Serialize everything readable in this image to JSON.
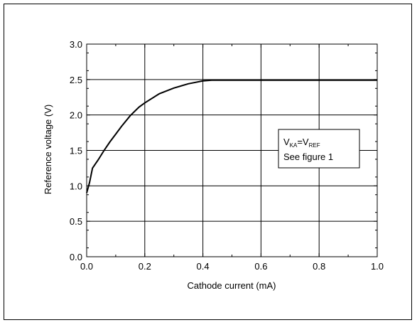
{
  "chart_data": {
    "type": "line",
    "xlabel": "Cathode current (mA)",
    "ylabel": "Reference voltage (V)",
    "xlim": [
      0.0,
      1.0
    ],
    "ylim": [
      0.0,
      3.0
    ],
    "x_ticks": [
      "0.0",
      "0.2",
      "0.4",
      "0.6",
      "0.8",
      "1.0"
    ],
    "y_ticks": [
      "0.0",
      "0.5",
      "1.0",
      "1.5",
      "2.0",
      "2.5",
      "3.0"
    ],
    "grid": true,
    "series": [
      {
        "x": [
          0.0,
          0.01,
          0.02,
          0.04,
          0.06,
          0.08,
          0.1,
          0.12,
          0.15,
          0.18,
          0.2,
          0.25,
          0.3,
          0.35,
          0.4,
          0.43,
          0.45,
          0.5,
          0.6,
          0.7,
          0.8,
          0.9,
          1.0
        ],
        "y": [
          0.9,
          1.05,
          1.25,
          1.37,
          1.5,
          1.62,
          1.73,
          1.84,
          1.99,
          2.11,
          2.17,
          2.3,
          2.38,
          2.44,
          2.48,
          2.49,
          2.49,
          2.49,
          2.49,
          2.49,
          2.49,
          2.49,
          2.49
        ],
        "color": "#000000"
      }
    ],
    "annotation": {
      "v": "V",
      "ka": "KA",
      "eq": "=V",
      "ref": "REF",
      "line2": "See figure 1"
    }
  }
}
